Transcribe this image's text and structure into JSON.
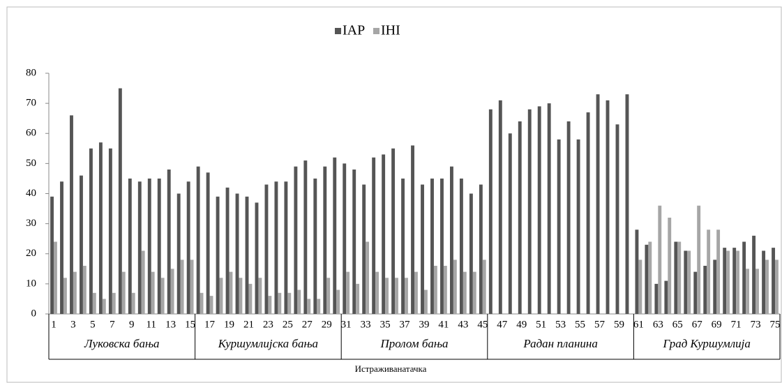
{
  "chart_data": {
    "type": "bar",
    "x_label": "Истраживанатачка",
    "categories": [
      "1",
      null,
      "3",
      null,
      "5",
      null,
      "7",
      null,
      "9",
      null,
      "11",
      null,
      "13",
      null,
      "15",
      null,
      "17",
      null,
      "19",
      null,
      "21",
      null,
      "23",
      null,
      "25",
      null,
      "27",
      null,
      "29",
      null,
      "31",
      null,
      "33",
      null,
      "35",
      null,
      "37",
      null,
      "39",
      null,
      "41",
      null,
      "43",
      null,
      "45",
      null,
      "47",
      null,
      "49",
      null,
      "51",
      null,
      "53",
      null,
      "55",
      null,
      "57",
      null,
      "59",
      null,
      "61",
      null,
      "63",
      null,
      "65",
      null,
      "67",
      null,
      "69",
      null,
      "71",
      null,
      "73",
      null,
      "75"
    ],
    "groups": [
      "Луковска бања",
      "Куршумлијска бања",
      "Пролом бања",
      "Радан планина",
      "Град Куршумлија"
    ],
    "series": [
      {
        "name": "IAP",
        "color": "#555555",
        "values": [
          39,
          44,
          66,
          46,
          55,
          57,
          55,
          75,
          45,
          44,
          45,
          45,
          48,
          40,
          44,
          49,
          47,
          39,
          42,
          40,
          39,
          37,
          43,
          44,
          44,
          49,
          51,
          45,
          49,
          52,
          50,
          48,
          43,
          52,
          53,
          55,
          45,
          56,
          43,
          45,
          45,
          49,
          45,
          40,
          43,
          68,
          71,
          60,
          64,
          68,
          69,
          70,
          58,
          64,
          58,
          67,
          73,
          71,
          63,
          73,
          28,
          23,
          10,
          11,
          24,
          21,
          14,
          16,
          18,
          22,
          22,
          24,
          26,
          21,
          22
        ]
      },
      {
        "name": "IHI",
        "color": "#a6a6a6",
        "values": [
          24,
          12,
          14,
          16,
          7,
          5,
          7,
          14,
          7,
          21,
          14,
          12,
          15,
          18,
          18,
          7,
          6,
          12,
          14,
          12,
          10,
          12,
          6,
          7,
          7,
          8,
          5,
          5,
          12,
          8,
          14,
          10,
          24,
          14,
          12,
          12,
          12,
          14,
          8,
          16,
          16,
          18,
          14,
          14,
          18,
          null,
          null,
          null,
          null,
          null,
          null,
          null,
          null,
          null,
          null,
          null,
          null,
          null,
          null,
          null,
          18,
          24,
          36,
          32,
          24,
          21,
          36,
          28,
          28,
          21,
          21,
          15,
          15,
          18,
          18
        ]
      }
    ],
    "ylim": [
      0,
      80
    ],
    "yticks": [
      0,
      10,
      20,
      30,
      40,
      50,
      60,
      70,
      80
    ],
    "legend": "top"
  }
}
